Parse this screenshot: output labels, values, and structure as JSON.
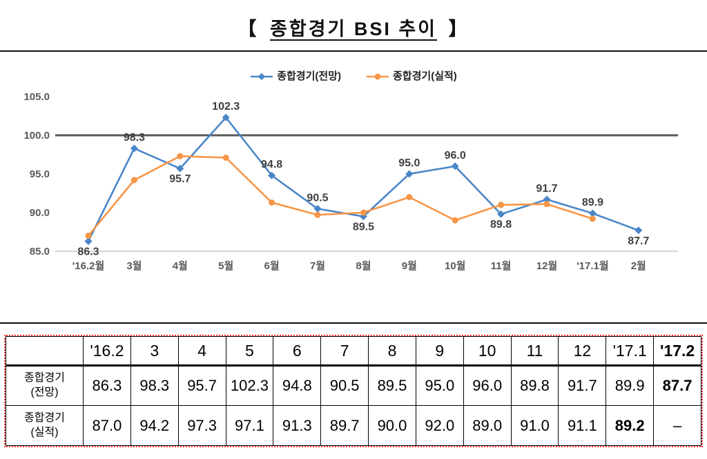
{
  "title": {
    "left_bracket": "【",
    "main": "종합경기 BSI 추이",
    "right_bracket": "】"
  },
  "chart_data": {
    "type": "line",
    "title": "종합경기 BSI 추이",
    "categories": [
      "'16.2월",
      "3월",
      "4월",
      "5월",
      "6월",
      "7월",
      "8월",
      "9월",
      "10월",
      "11월",
      "12월",
      "'17.1월",
      "2월"
    ],
    "series": [
      {
        "name": "종합경기(전망)",
        "color": "#4a86c8",
        "marker": "diamond",
        "values": [
          86.3,
          98.3,
          95.7,
          102.3,
          94.8,
          90.5,
          89.5,
          95.0,
          96.0,
          89.8,
          91.7,
          89.9,
          87.7
        ]
      },
      {
        "name": "종합경기(실적)",
        "color": "#f79646",
        "marker": "circle",
        "values": [
          87.0,
          94.2,
          97.3,
          97.1,
          91.3,
          89.7,
          90.0,
          92.0,
          89.0,
          91.0,
          91.1,
          89.2,
          null
        ]
      }
    ],
    "ylim": [
      85.0,
      105.0
    ],
    "yticks": [
      105.0,
      100.0,
      95.0,
      90.0,
      85.0
    ],
    "reference_line": 100.0,
    "grid": false,
    "legend_position": "top",
    "label_positions": [
      "below",
      "above",
      "below",
      "above",
      "above",
      "above",
      "below",
      "above",
      "above",
      "below",
      "above",
      "above",
      "below"
    ],
    "axis_color": "#595959",
    "data_label_color": "#3f3f3f",
    "reference_line_color": "#595959",
    "baseline_color": "#c9c9c9"
  },
  "table": {
    "header": [
      "",
      "'16.2",
      "3",
      "4",
      "5",
      "6",
      "7",
      "8",
      "9",
      "10",
      "11",
      "12",
      "'17.1",
      "'17.2"
    ],
    "header_bold": [
      false,
      false,
      false,
      false,
      false,
      false,
      false,
      false,
      false,
      false,
      false,
      false,
      false,
      true
    ],
    "rows": [
      {
        "label": [
          "종합경기",
          "(전망)"
        ],
        "bold_index": 12,
        "values": [
          "86.3",
          "98.3",
          "95.7",
          "102.3",
          "94.8",
          "90.5",
          "89.5",
          "95.0",
          "96.0",
          "89.8",
          "91.7",
          "89.9",
          "87.7"
        ]
      },
      {
        "label": [
          "종합경기",
          "(실적)"
        ],
        "bold_index": 11,
        "values": [
          "87.0",
          "94.2",
          "97.3",
          "97.1",
          "91.3",
          "89.7",
          "90.0",
          "92.0",
          "89.0",
          "91.0",
          "91.1",
          "89.2",
          "–"
        ]
      }
    ]
  }
}
